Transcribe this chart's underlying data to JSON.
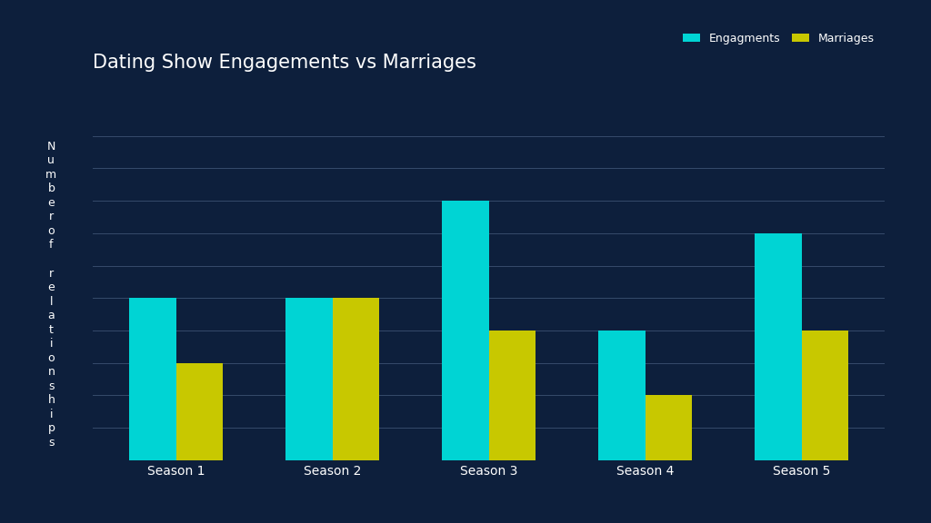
{
  "title": "Dating Show Engagements vs Marriages",
  "categories": [
    "Season 1",
    "Season 2",
    "Season 3",
    "Season 4",
    "Season 5"
  ],
  "engagements": [
    5,
    5,
    8,
    4,
    7
  ],
  "marriages": [
    3,
    5,
    4,
    2,
    4
  ],
  "engagement_color": "#00D4D4",
  "marriage_color": "#C8C800",
  "background_color": "#0D1F3C",
  "text_color": "#FFFFFF",
  "grid_color": "#3A5070",
  "ylabel_chars": "N\nu\nm\nb\ne\nr\no\nf\n \nr\ne\nl\na\nt\ni\no\nn\ns\nh\ni\np\ns",
  "legend_labels": [
    "Engagments",
    "Marriages"
  ],
  "bar_width": 0.3,
  "ylim": [
    0,
    10
  ],
  "title_fontsize": 15,
  "tick_fontsize": 10,
  "legend_fontsize": 9
}
